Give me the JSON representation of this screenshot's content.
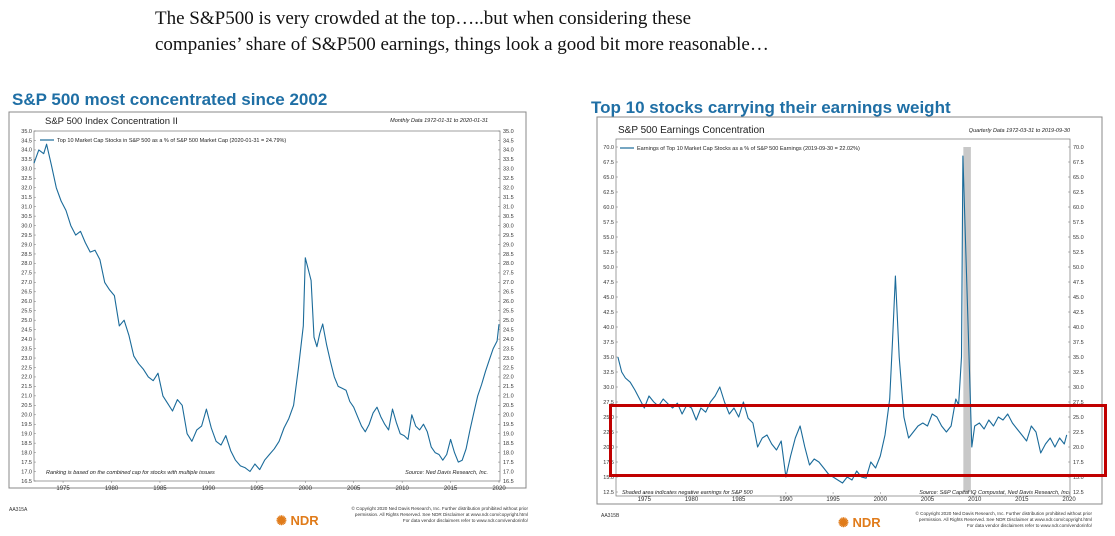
{
  "headline": {
    "line1": "The S&P500 is very crowded at the top…..but when considering these",
    "line2": "companies’ share of S&P500 earnings, things look a good bit more reasonable…"
  },
  "colors": {
    "title_blue": "#1f6fa5",
    "line_blue": "#1b6b9a",
    "highlight_red": "#c00000",
    "shade_gray": "#c8c8c8",
    "ndr_orange": "#e07b1a"
  },
  "left": {
    "panel_title": "S&P 500 most concentrated since 2002",
    "chart_title": "S&P 500 Index Concentration II",
    "date_note": "Monthly Data 1972-01-31 to 2020-01-31",
    "legend": "Top 10 Market Cap Stocks in S&P 500 as a % of S&P 500 Market Cap (2020-01-31 = 24.79%)",
    "footnote": "Ranking is based on the combined cap for stocks with multiple issues",
    "source": "Source: Ned Davis Research, Inc.",
    "code": "AA315A",
    "logo": "NDR",
    "copyright": [
      "© Copyright 2020 Ned Davis Research, Inc. Further distribution prohibited without prior",
      "permission. All Rights Reserved. See NDR Disclaimer at www.ndr.com/copyright.html",
      "For data vendor disclaimers refer to www.ndr.com/vendorinfo/"
    ]
  },
  "right": {
    "panel_title": "Top 10 stocks carrying their earnings weight",
    "chart_title": "S&P 500 Earnings Concentration",
    "date_note": "Quarterly Data 1972-03-31 to 2019-09-30",
    "legend": "Earnings of Top 10 Market Cap Stocks as a % of S&P 500 Earnings (2019-09-30 = 22.02%)",
    "footnote": "Shaded area indicates negative earnings for S&P 500",
    "source": "Source: S&P Capital IQ Compustat, Ned Davis Research, Inc.",
    "code": "AA315B",
    "logo": "NDR",
    "copyright": [
      "© Copyright 2020 Ned Davis Research, Inc. Further distribution prohibited without prior",
      "permission. All Rights Reserved. See NDR Disclaimer at www.ndr.com/copyright.html",
      "For data vendor disclaimers refer to www.ndr.com/vendorinfo/"
    ]
  },
  "chart_data": [
    {
      "type": "line",
      "title": "S&P 500 Index Concentration II",
      "xlim": [
        1972,
        2020.1
      ],
      "ylim": [
        16.5,
        35.0
      ],
      "ytick_step": 0.5,
      "xticks": [
        1975,
        1980,
        1985,
        1990,
        1995,
        2000,
        2005,
        2010,
        2015,
        2020
      ],
      "grid": false,
      "legend_position": "top-left",
      "series": [
        {
          "name": "Top 10 Market Cap Stocks in S&P 500 as a % of S&P 500 Market Cap (2020-01-31 = 24.79%)",
          "x": [
            1972.0,
            1972.5,
            1973.0,
            1973.3,
            1973.8,
            1974.3,
            1974.8,
            1975.3,
            1975.8,
            1976.3,
            1976.8,
            1977.3,
            1977.8,
            1978.3,
            1978.8,
            1979.3,
            1979.8,
            1980.3,
            1980.8,
            1981.3,
            1981.8,
            1982.3,
            1982.8,
            1983.3,
            1983.8,
            1984.3,
            1984.8,
            1985.3,
            1985.8,
            1986.3,
            1986.8,
            1987.3,
            1987.8,
            1988.3,
            1988.8,
            1989.3,
            1989.8,
            1990.3,
            1990.8,
            1991.3,
            1991.8,
            1992.3,
            1992.8,
            1993.3,
            1993.8,
            1994.3,
            1994.8,
            1995.3,
            1995.8,
            1996.3,
            1996.8,
            1997.3,
            1997.8,
            1998.3,
            1998.8,
            1999.3,
            1999.8,
            2000.0,
            2000.3,
            2000.6,
            2000.9,
            2001.2,
            2001.5,
            2001.8,
            2002.2,
            2002.6,
            2003.0,
            2003.4,
            2003.8,
            2004.2,
            2004.6,
            2005.0,
            2005.4,
            2005.8,
            2006.2,
            2006.6,
            2007.0,
            2007.4,
            2007.8,
            2008.2,
            2008.6,
            2009.0,
            2009.4,
            2009.8,
            2010.2,
            2010.6,
            2011.0,
            2011.4,
            2011.8,
            2012.2,
            2012.6,
            2013.0,
            2013.4,
            2013.8,
            2014.2,
            2014.6,
            2015.0,
            2015.4,
            2015.8,
            2016.2,
            2016.6,
            2017.0,
            2017.4,
            2017.8,
            2018.2,
            2018.6,
            2019.0,
            2019.4,
            2019.8,
            2020.0
          ],
          "values": [
            33.3,
            34.0,
            33.8,
            34.3,
            33.2,
            32.0,
            31.3,
            30.8,
            30.0,
            29.5,
            29.7,
            29.1,
            28.6,
            28.7,
            28.2,
            27.0,
            26.6,
            26.3,
            24.7,
            25.0,
            24.2,
            23.1,
            22.7,
            22.4,
            22.0,
            21.8,
            22.2,
            21.0,
            20.6,
            20.2,
            20.8,
            20.5,
            19.0,
            18.6,
            19.2,
            19.4,
            20.3,
            19.3,
            18.6,
            18.4,
            18.9,
            18.1,
            17.6,
            17.3,
            17.2,
            17.0,
            17.4,
            17.1,
            17.6,
            17.9,
            18.2,
            18.6,
            19.3,
            19.8,
            20.5,
            22.5,
            24.7,
            28.3,
            27.7,
            27.1,
            24.1,
            23.6,
            24.3,
            24.8,
            23.7,
            22.8,
            22.0,
            21.5,
            21.4,
            21.3,
            20.7,
            20.4,
            19.9,
            19.4,
            19.1,
            19.5,
            20.1,
            20.4,
            19.9,
            19.5,
            19.2,
            20.3,
            19.6,
            19.0,
            18.9,
            18.7,
            20.0,
            19.4,
            19.2,
            19.5,
            19.1,
            18.3,
            18.0,
            17.9,
            17.6,
            17.9,
            18.7,
            18.0,
            17.5,
            17.6,
            18.2,
            19.2,
            20.1,
            21.0,
            21.6,
            22.3,
            22.9,
            23.5,
            23.9,
            24.79
          ]
        }
      ]
    },
    {
      "type": "line",
      "title": "S&P 500 Earnings Concentration",
      "xlim": [
        1972,
        2020.1
      ],
      "ylim": [
        12.5,
        70.0
      ],
      "ytick_step": 2.5,
      "xticks": [
        1975,
        1980,
        1985,
        1990,
        1995,
        2000,
        2005,
        2010,
        2015,
        2020
      ],
      "grid": false,
      "legend_position": "top-left",
      "shaded_x": [
        2008.8,
        2009.6
      ],
      "series": [
        {
          "name": "Earnings of Top 10 Market Cap Stocks as a % of S&P 500 Earnings (2019-09-30 = 22.02%)",
          "x": [
            1972.2,
            1972.6,
            1973.0,
            1973.5,
            1974.0,
            1974.5,
            1975.0,
            1975.5,
            1976.0,
            1976.5,
            1977.0,
            1977.5,
            1978.0,
            1978.5,
            1979.0,
            1979.5,
            1980.0,
            1980.5,
            1981.0,
            1981.5,
            1982.0,
            1982.5,
            1983.0,
            1983.5,
            1984.0,
            1984.5,
            1985.0,
            1985.5,
            1986.0,
            1986.5,
            1987.0,
            1987.5,
            1988.0,
            1988.5,
            1989.0,
            1989.5,
            1990.0,
            1990.5,
            1991.0,
            1991.5,
            1992.0,
            1992.5,
            1993.0,
            1993.5,
            1994.0,
            1994.5,
            1995.0,
            1995.5,
            1996.0,
            1996.5,
            1997.0,
            1997.5,
            1998.0,
            1998.5,
            1999.0,
            1999.5,
            2000.0,
            2000.5,
            2001.0,
            2001.3,
            2001.6,
            2002.0,
            2002.5,
            2003.0,
            2003.5,
            2004.0,
            2004.5,
            2005.0,
            2005.5,
            2006.0,
            2006.5,
            2007.0,
            2007.5,
            2008.0,
            2008.3,
            2008.6,
            2008.75,
            2009.7,
            2010.0,
            2010.5,
            2011.0,
            2011.5,
            2012.0,
            2012.5,
            2013.0,
            2013.5,
            2014.0,
            2014.5,
            2015.0,
            2015.5,
            2016.0,
            2016.5,
            2017.0,
            2017.5,
            2018.0,
            2018.5,
            2019.0,
            2019.5,
            2019.75
          ],
          "values": [
            35.0,
            32.5,
            31.5,
            30.8,
            29.5,
            28.0,
            26.5,
            28.5,
            27.5,
            26.8,
            28.0,
            27.2,
            26.5,
            27.3,
            25.5,
            27.0,
            26.5,
            24.5,
            26.5,
            25.8,
            27.5,
            28.5,
            30.0,
            27.5,
            25.5,
            26.5,
            25.0,
            27.5,
            24.8,
            24.0,
            20.0,
            21.5,
            22.0,
            20.5,
            19.5,
            21.0,
            15.0,
            18.5,
            21.5,
            23.5,
            20.0,
            17.0,
            18.0,
            17.5,
            16.5,
            15.5,
            15.0,
            14.5,
            14.0,
            15.0,
            14.5,
            16.0,
            15.0,
            14.8,
            17.5,
            16.5,
            18.5,
            22.0,
            28.0,
            38.0,
            48.5,
            35.0,
            25.0,
            21.5,
            22.5,
            23.5,
            24.0,
            23.5,
            25.5,
            25.0,
            23.5,
            22.5,
            23.5,
            28.0,
            27.0,
            35.0,
            68.5,
            20.0,
            23.5,
            24.0,
            23.0,
            24.5,
            23.5,
            25.0,
            24.5,
            25.5,
            24.0,
            23.0,
            22.0,
            21.0,
            23.5,
            22.5,
            19.0,
            20.5,
            21.5,
            20.0,
            21.5,
            20.5,
            22.02
          ]
        }
      ]
    }
  ]
}
